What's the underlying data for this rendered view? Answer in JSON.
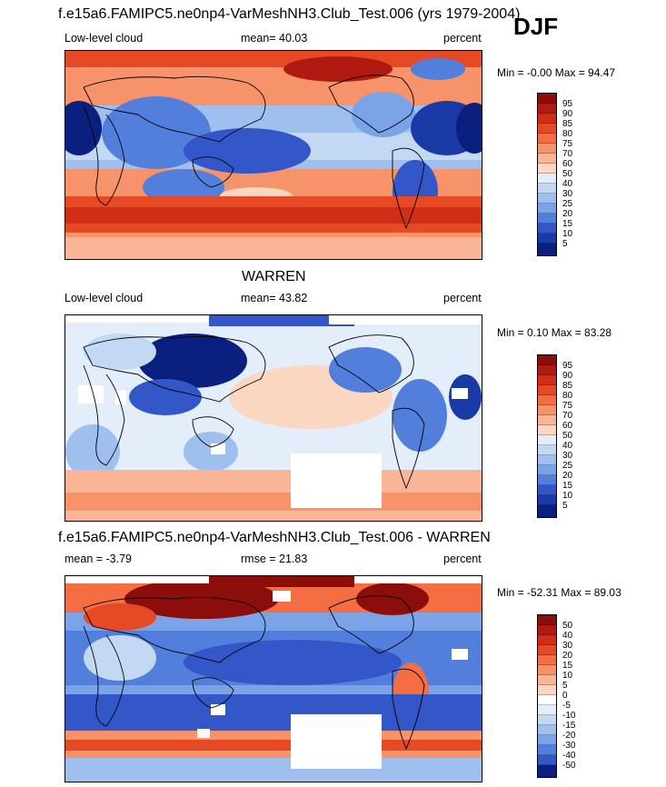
{
  "season": "DJF",
  "panels": [
    {
      "title": "f.e15a6.FAMIPC5.ne0np4-VarMeshNH3.Club_Test.006 (yrs 1979-2004)",
      "left_label": "Low-level cloud",
      "center_label": "mean=  40.03",
      "right_label": "percent",
      "minmax": "Min =  -0.00 Max =  94.47",
      "colorbar_labels": [
        "95",
        "90",
        "85",
        "80",
        "75",
        "70",
        "60",
        "50",
        "40",
        "30",
        "25",
        "20",
        "15",
        "10",
        "5"
      ],
      "colorbar_colors": [
        "#8b0e0a",
        "#b01a10",
        "#d22d17",
        "#e54a25",
        "#f46d43",
        "#f7936a",
        "#f9b595",
        "#fbd7c2",
        "#e4eefa",
        "#c3d8f3",
        "#9fc0ee",
        "#7aa3e8",
        "#537fdc",
        "#3357c8",
        "#1a3aa8",
        "#0b1f7f"
      ]
    },
    {
      "title": "WARREN",
      "left_label": "Low-level cloud",
      "center_label": "mean=  43.82",
      "right_label": "percent",
      "minmax": "Min =   0.10 Max =  83.28",
      "colorbar_labels": [
        "95",
        "90",
        "85",
        "80",
        "75",
        "70",
        "60",
        "50",
        "40",
        "30",
        "25",
        "20",
        "15",
        "10",
        "5"
      ],
      "colorbar_colors": [
        "#8b0e0a",
        "#b01a10",
        "#d22d17",
        "#e54a25",
        "#f46d43",
        "#f7936a",
        "#f9b595",
        "#fbd7c2",
        "#e4eefa",
        "#c3d8f3",
        "#9fc0ee",
        "#7aa3e8",
        "#537fdc",
        "#3357c8",
        "#1a3aa8",
        "#0b1f7f"
      ]
    },
    {
      "title": "f.e15a6.FAMIPC5.ne0np4-VarMeshNH3.Club_Test.006 - WARREN",
      "left_label": "mean =  -3.79",
      "center_label": "rmse =  21.83",
      "right_label": "percent",
      "minmax": "Min = -52.31 Max =  89.03",
      "colorbar_labels": [
        "50",
        "40",
        "30",
        "20",
        "15",
        "10",
        "5",
        "0",
        "-5",
        "-10",
        "-15",
        "-20",
        "-30",
        "-40",
        "-50"
      ],
      "colorbar_colors": [
        "#8b0e0a",
        "#b01a10",
        "#d22d17",
        "#e54a25",
        "#f46d43",
        "#f7936a",
        "#f9b595",
        "#fbd7c2",
        "#ffffff",
        "#e4eefa",
        "#c3d8f3",
        "#9fc0ee",
        "#7aa3e8",
        "#537fdc",
        "#3357c8",
        "#0b1f7f"
      ]
    }
  ]
}
